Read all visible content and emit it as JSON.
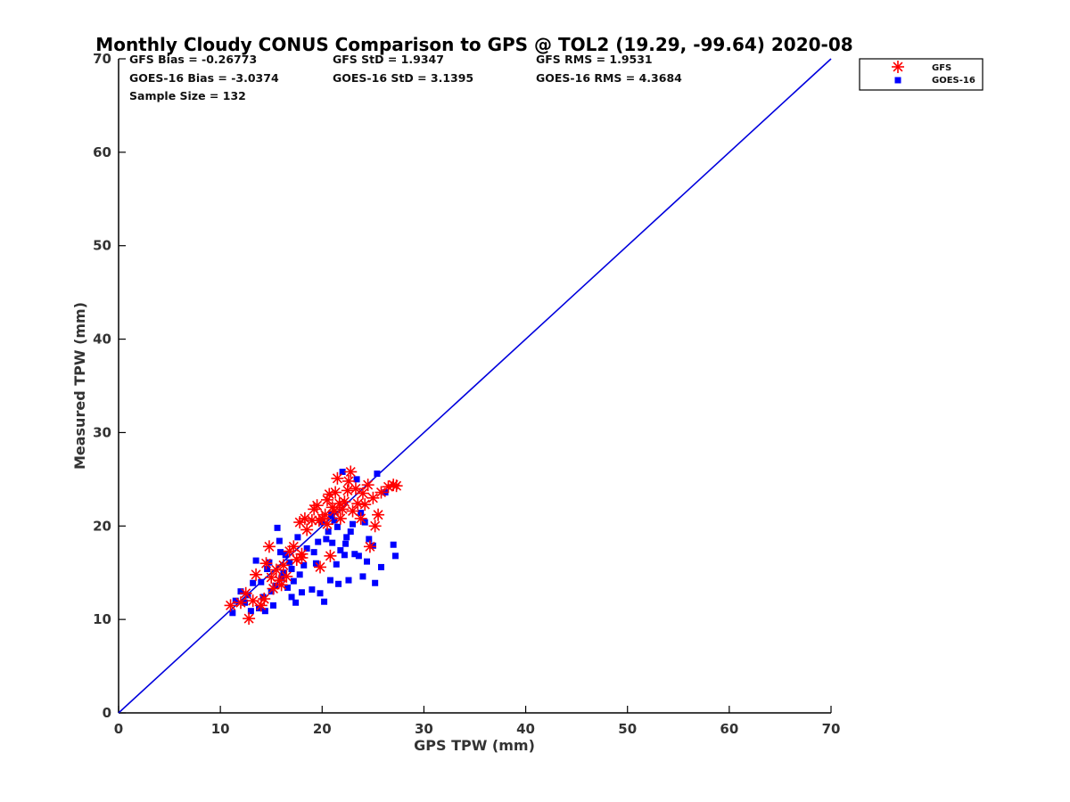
{
  "chart_data": {
    "type": "scatter",
    "title": "Monthly Cloudy CONUS Comparison to GPS @ TOL2 (19.29, -99.64) 2020-08",
    "xlabel": "GPS TPW (mm)",
    "ylabel": "Measured TPW (mm)",
    "xlim": [
      0,
      70
    ],
    "ylim": [
      0,
      70
    ],
    "xticks": [
      "0",
      "10",
      "20",
      "30",
      "40",
      "50",
      "60",
      "70"
    ],
    "yticks": [
      "0",
      "10",
      "20",
      "30",
      "40",
      "50",
      "60",
      "70"
    ],
    "grid": false,
    "legend_position": "top-right",
    "stats": {
      "gfs_bias": "GFS Bias = -0.26773",
      "goes_bias": "GOES-16 Bias = -3.0374",
      "sample_size": "Sample Size = 132",
      "gfs_std": "GFS StD = 1.9347",
      "goes_std": "GOES-16 StD = 3.1395",
      "gfs_rms": "GFS RMS = 1.9531",
      "goes_rms": "GOES-16 RMS = 4.3684"
    },
    "reference_line": {
      "x": [
        0,
        70
      ],
      "y": [
        0,
        70
      ],
      "color": "#0000dd"
    },
    "series": [
      {
        "name": "GFS",
        "marker": "asterisk",
        "color": "#ff0000",
        "points": [
          [
            11.0,
            11.5
          ],
          [
            12.0,
            11.8
          ],
          [
            12.5,
            12.8
          ],
          [
            12.8,
            10.1
          ],
          [
            13.2,
            12.0
          ],
          [
            13.5,
            14.8
          ],
          [
            14.0,
            11.5
          ],
          [
            14.3,
            12.2
          ],
          [
            14.5,
            16.0
          ],
          [
            14.8,
            17.8
          ],
          [
            15.0,
            14.5
          ],
          [
            15.2,
            13.3
          ],
          [
            15.5,
            15.3
          ],
          [
            15.8,
            14.2
          ],
          [
            16.0,
            13.7
          ],
          [
            16.5,
            14.6
          ],
          [
            16.8,
            17.3
          ],
          [
            17.2,
            17.8
          ],
          [
            17.5,
            16.4
          ],
          [
            17.8,
            20.4
          ],
          [
            18.0,
            17.0
          ],
          [
            18.3,
            20.8
          ],
          [
            18.5,
            19.6
          ],
          [
            19.0,
            20.6
          ],
          [
            19.2,
            21.8
          ],
          [
            19.5,
            22.2
          ],
          [
            19.8,
            15.6
          ],
          [
            20.0,
            20.8
          ],
          [
            20.3,
            21.2
          ],
          [
            20.5,
            22.8
          ],
          [
            20.7,
            23.4
          ],
          [
            20.8,
            16.8
          ],
          [
            21.0,
            22.0
          ],
          [
            21.2,
            21.6
          ],
          [
            21.3,
            23.6
          ],
          [
            21.5,
            25.1
          ],
          [
            21.7,
            22.4
          ],
          [
            22.0,
            21.8
          ],
          [
            22.2,
            22.6
          ],
          [
            22.5,
            23.8
          ],
          [
            22.8,
            25.8
          ],
          [
            23.0,
            21.6
          ],
          [
            23.3,
            24.0
          ],
          [
            23.5,
            22.4
          ],
          [
            23.8,
            20.8
          ],
          [
            24.0,
            23.5
          ],
          [
            24.2,
            22.3
          ],
          [
            24.5,
            24.4
          ],
          [
            24.7,
            17.8
          ],
          [
            25.0,
            23.0
          ],
          [
            25.2,
            20.0
          ],
          [
            25.5,
            21.2
          ],
          [
            25.8,
            23.6
          ],
          [
            26.5,
            24.2
          ],
          [
            27.0,
            24.4
          ],
          [
            27.3,
            24.3
          ],
          [
            20.5,
            20.2
          ],
          [
            21.8,
            20.8
          ],
          [
            19.7,
            20.6
          ],
          [
            22.6,
            24.8
          ],
          [
            18.0,
            16.6
          ],
          [
            16.2,
            15.8
          ]
        ]
      },
      {
        "name": "GOES-16",
        "marker": "square",
        "color": "#0000ff",
        "points": [
          [
            11.2,
            10.7
          ],
          [
            11.5,
            12.0
          ],
          [
            12.0,
            13.0
          ],
          [
            12.4,
            11.8
          ],
          [
            12.7,
            12.6
          ],
          [
            13.0,
            10.9
          ],
          [
            13.2,
            13.9
          ],
          [
            13.5,
            16.3
          ],
          [
            13.8,
            11.2
          ],
          [
            14.0,
            14.0
          ],
          [
            14.2,
            12.4
          ],
          [
            14.4,
            10.9
          ],
          [
            14.6,
            15.4
          ],
          [
            14.8,
            16.1
          ],
          [
            15.0,
            13.0
          ],
          [
            15.2,
            11.5
          ],
          [
            15.4,
            13.6
          ],
          [
            15.6,
            19.8
          ],
          [
            15.8,
            18.4
          ],
          [
            16.0,
            14.4
          ],
          [
            16.2,
            15.0
          ],
          [
            16.4,
            16.9
          ],
          [
            16.6,
            13.4
          ],
          [
            16.8,
            16.1
          ],
          [
            17.0,
            12.4
          ],
          [
            17.2,
            14.1
          ],
          [
            17.4,
            11.8
          ],
          [
            17.6,
            18.8
          ],
          [
            17.8,
            14.8
          ],
          [
            18.0,
            12.9
          ],
          [
            18.2,
            15.8
          ],
          [
            19.0,
            13.2
          ],
          [
            19.2,
            17.2
          ],
          [
            19.4,
            16.0
          ],
          [
            19.6,
            18.3
          ],
          [
            19.8,
            12.8
          ],
          [
            20.0,
            20.4
          ],
          [
            20.2,
            11.9
          ],
          [
            20.4,
            18.6
          ],
          [
            20.6,
            19.4
          ],
          [
            20.8,
            14.2
          ],
          [
            21.0,
            18.2
          ],
          [
            21.2,
            20.6
          ],
          [
            21.4,
            15.9
          ],
          [
            21.6,
            13.8
          ],
          [
            21.8,
            17.4
          ],
          [
            22.0,
            25.8
          ],
          [
            22.2,
            16.9
          ],
          [
            22.4,
            18.8
          ],
          [
            22.6,
            14.2
          ],
          [
            22.8,
            19.4
          ],
          [
            23.0,
            20.2
          ],
          [
            23.2,
            17.0
          ],
          [
            23.4,
            25.0
          ],
          [
            23.6,
            16.8
          ],
          [
            23.8,
            21.4
          ],
          [
            24.0,
            14.6
          ],
          [
            24.2,
            20.4
          ],
          [
            24.4,
            16.2
          ],
          [
            24.6,
            18.6
          ],
          [
            25.0,
            17.9
          ],
          [
            25.2,
            13.9
          ],
          [
            25.4,
            25.6
          ],
          [
            25.8,
            15.6
          ],
          [
            26.2,
            23.6
          ],
          [
            27.0,
            18.0
          ],
          [
            27.2,
            16.8
          ],
          [
            21.5,
            19.9
          ],
          [
            22.3,
            18.1
          ],
          [
            20.9,
            21.2
          ],
          [
            18.5,
            17.6
          ],
          [
            17.0,
            15.4
          ],
          [
            15.9,
            17.2
          ]
        ]
      }
    ]
  }
}
